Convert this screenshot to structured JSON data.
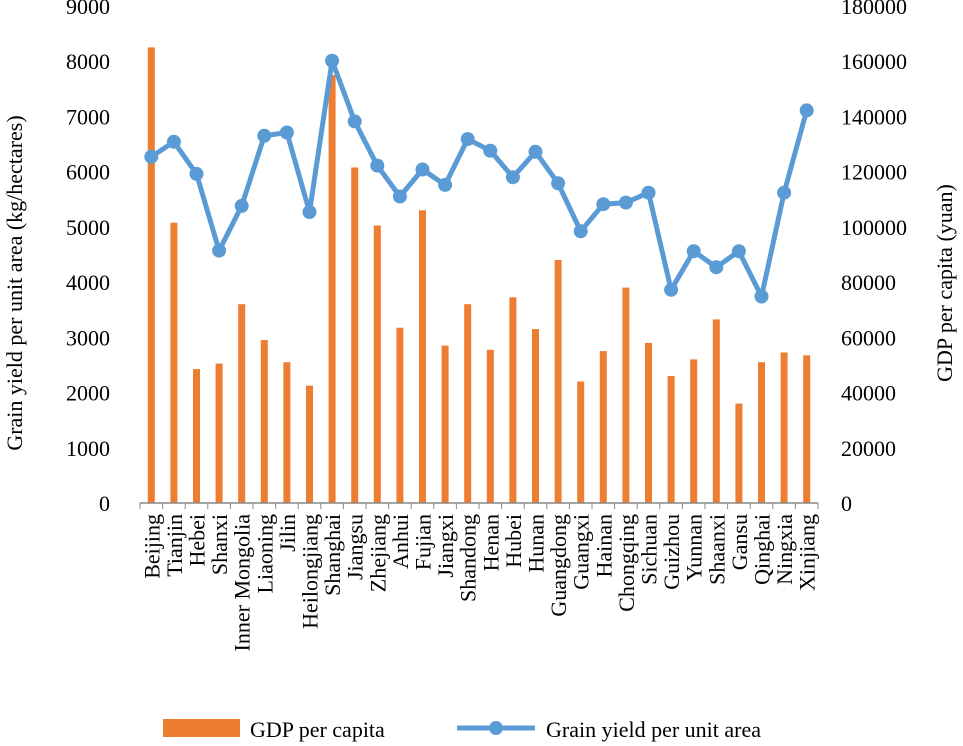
{
  "chart_data": {
    "type": "bar+line",
    "categories": [
      "Beijing",
      "Tianjin",
      "Hebei",
      "Shanxi",
      "Inner Mongolia",
      "Liaoning",
      "Jilin",
      "Heilongjiang",
      "Shanghai",
      "Jiangsu",
      "Zhejiang",
      "Anhui",
      "Fujian",
      "Jiangxi",
      "Shandong",
      "Henan",
      "Hubei",
      "Hunan",
      "Guangdong",
      "Guangxi",
      "Hainan",
      "Chongqing",
      "Sichuan",
      "Guizhou",
      "Yunnan",
      "Shaanxi",
      "Gansu",
      "Qinghai",
      "Ningxia",
      "Xinjiang"
    ],
    "series": [
      {
        "name": "GDP per capita",
        "type": "bar",
        "axis": "right",
        "color": "#ED7D31",
        "values": [
          165000,
          101500,
          48500,
          50500,
          72000,
          59000,
          51000,
          42500,
          155000,
          121500,
          100500,
          63500,
          106000,
          57000,
          72000,
          55500,
          74500,
          63000,
          88000,
          44000,
          55000,
          78000,
          58000,
          46000,
          52000,
          66500,
          36000,
          51000,
          54500,
          53500
        ]
      },
      {
        "name": "Grain yield per unit area",
        "type": "line",
        "axis": "left",
        "color": "#5B9BD5",
        "values": [
          6270,
          6540,
          5960,
          4570,
          5380,
          6650,
          6710,
          5270,
          8010,
          6910,
          6110,
          5550,
          6040,
          5760,
          6590,
          6380,
          5900,
          6360,
          5790,
          4920,
          5410,
          5440,
          5620,
          3860,
          4560,
          4270,
          4560,
          3740,
          5620,
          7110
        ]
      }
    ],
    "y_left": {
      "label": "Grain yield per unit area  (kg/hectares)",
      "lim": [
        0,
        9000
      ],
      "ticks": [
        "0",
        "1000",
        "2000",
        "3000",
        "4000",
        "5000",
        "6000",
        "7000",
        "8000",
        "9000"
      ]
    },
    "y_right": {
      "label": "GDP per capita  (yuan)",
      "lim": [
        0,
        180000
      ],
      "ticks": [
        "0",
        "20000",
        "40000",
        "60000",
        "80000",
        "100000",
        "120000",
        "140000",
        "160000",
        "180000"
      ]
    },
    "legend": {
      "position": "bottom",
      "items": [
        "GDP per capita",
        "Grain yield per unit area"
      ]
    },
    "grid": false
  }
}
